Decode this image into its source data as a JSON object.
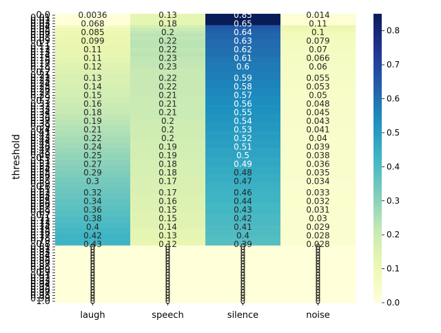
{
  "chart_data": {
    "type": "heatmap",
    "title": "",
    "xlabel": "",
    "ylabel": "threshold",
    "columns": [
      "laugh",
      "speech",
      "silence",
      "noise"
    ],
    "row_labels": [
      "0.0",
      "0.01",
      "0.02",
      "0.03",
      "0.04",
      "0.05",
      "0.06",
      "0.07",
      "0.08",
      "0.09",
      "0.1",
      "0.11",
      "0.12",
      "0.13",
      "0.14",
      "0.15",
      "0.16",
      "0.17",
      "0.18",
      "0.19",
      "0.2",
      "0.21",
      "0.22",
      "0.23",
      "0.24",
      "0.25",
      "0.26",
      "0.27",
      "0.28",
      "0.29",
      "0.3",
      "0.31",
      "0.32",
      "0.33",
      "0.34",
      "0.35",
      "0.36",
      "0.37",
      "0.38",
      "0.39",
      "0.4",
      "0.41",
      "0.42",
      "0.43",
      "0.44",
      "0.45",
      "0.46",
      "0.47",
      "0.48",
      "0.49",
      "0.5",
      "0.51",
      "0.52",
      "0.53",
      "0.54",
      "0.55",
      "0.56",
      "0.57",
      "0.58",
      "0.59",
      "0.6",
      "0.61",
      "0.62",
      "0.63",
      "0.64",
      "0.65",
      "0.66",
      "0.67",
      "0.68",
      "0.69",
      "0.7",
      "0.71",
      "0.72",
      "0.73",
      "0.74",
      "0.75",
      "0.76",
      "0.77",
      "0.78",
      "0.79",
      "0.8",
      "0.81",
      "0.82",
      "0.83",
      "0.84",
      "0.85",
      "0.86",
      "0.87",
      "0.88",
      "0.89",
      "0.9",
      "0.91",
      "0.92",
      "0.93",
      "0.94",
      "0.95",
      "0.96",
      "0.97",
      "0.98",
      "0.99",
      "1.0"
    ],
    "values": [
      [
        0.0036,
        0.13,
        0.85,
        0.014
      ],
      [
        0.0036,
        0.13,
        0.85,
        0.014
      ],
      [
        0.0036,
        0.13,
        0.85,
        0.014
      ],
      [
        0.0036,
        0.13,
        0.85,
        0.014
      ],
      [
        0.068,
        0.18,
        0.65,
        0.11
      ],
      [
        0.085,
        0.2,
        0.64,
        0.1
      ],
      [
        0.099,
        0.22,
        0.63,
        0.079
      ],
      [
        0.1,
        0.23,
        0.62,
        0.075
      ],
      [
        0.11,
        0.22,
        0.62,
        0.071
      ],
      [
        0.11,
        0.23,
        0.61,
        0.068
      ],
      [
        0.11,
        0.23,
        0.61,
        0.066
      ],
      [
        0.12,
        0.23,
        0.61,
        0.064
      ],
      [
        0.12,
        0.22,
        0.6,
        0.062
      ],
      [
        0.12,
        0.23,
        0.6,
        0.06
      ],
      [
        0.12,
        0.23,
        0.6,
        0.058
      ],
      [
        0.13,
        0.22,
        0.59,
        0.057
      ],
      [
        0.13,
        0.22,
        0.59,
        0.055
      ],
      [
        0.14,
        0.22,
        0.58,
        0.054
      ],
      [
        0.14,
        0.22,
        0.58,
        0.053
      ],
      [
        0.15,
        0.21,
        0.58,
        0.052
      ],
      [
        0.15,
        0.21,
        0.57,
        0.051
      ],
      [
        0.16,
        0.21,
        0.57,
        0.05
      ],
      [
        0.16,
        0.21,
        0.57,
        0.049
      ],
      [
        0.16,
        0.21,
        0.56,
        0.048
      ],
      [
        0.17,
        0.21,
        0.56,
        0.047
      ],
      [
        0.17,
        0.21,
        0.56,
        0.047
      ],
      [
        0.18,
        0.21,
        0.55,
        0.046
      ],
      [
        0.18,
        0.21,
        0.55,
        0.045
      ],
      [
        0.18,
        0.21,
        0.55,
        0.045
      ],
      [
        0.19,
        0.2,
        0.54,
        0.044
      ],
      [
        0.19,
        0.2,
        0.54,
        0.043
      ],
      [
        0.2,
        0.2,
        0.54,
        0.043
      ],
      [
        0.2,
        0.2,
        0.53,
        0.042
      ],
      [
        0.21,
        0.2,
        0.53,
        0.042
      ],
      [
        0.21,
        0.2,
        0.53,
        0.041
      ],
      [
        0.22,
        0.2,
        0.52,
        0.041
      ],
      [
        0.22,
        0.2,
        0.52,
        0.04
      ],
      [
        0.23,
        0.19,
        0.52,
        0.04
      ],
      [
        0.23,
        0.19,
        0.51,
        0.039
      ],
      [
        0.24,
        0.19,
        0.51,
        0.039
      ],
      [
        0.24,
        0.19,
        0.51,
        0.038
      ],
      [
        0.25,
        0.19,
        0.5,
        0.038
      ],
      [
        0.25,
        0.19,
        0.5,
        0.038
      ],
      [
        0.26,
        0.19,
        0.5,
        0.037
      ],
      [
        0.26,
        0.18,
        0.49,
        0.037
      ],
      [
        0.27,
        0.18,
        0.49,
        0.036
      ],
      [
        0.27,
        0.18,
        0.49,
        0.036
      ],
      [
        0.28,
        0.18,
        0.48,
        0.036
      ],
      [
        0.28,
        0.18,
        0.48,
        0.035
      ],
      [
        0.29,
        0.18,
        0.48,
        0.035
      ],
      [
        0.29,
        0.18,
        0.47,
        0.035
      ],
      [
        0.3,
        0.17,
        0.47,
        0.034
      ],
      [
        0.3,
        0.17,
        0.47,
        0.034
      ],
      [
        0.31,
        0.17,
        0.46,
        0.034
      ],
      [
        0.31,
        0.17,
        0.46,
        0.033
      ],
      [
        0.32,
        0.17,
        0.46,
        0.033
      ],
      [
        0.32,
        0.17,
        0.45,
        0.033
      ],
      [
        0.33,
        0.16,
        0.45,
        0.033
      ],
      [
        0.33,
        0.16,
        0.45,
        0.032
      ],
      [
        0.34,
        0.16,
        0.44,
        0.032
      ],
      [
        0.34,
        0.16,
        0.44,
        0.032
      ],
      [
        0.35,
        0.16,
        0.44,
        0.032
      ],
      [
        0.35,
        0.16,
        0.43,
        0.031
      ],
      [
        0.36,
        0.15,
        0.43,
        0.031
      ],
      [
        0.36,
        0.15,
        0.43,
        0.031
      ],
      [
        0.37,
        0.15,
        0.43,
        0.031
      ],
      [
        0.37,
        0.15,
        0.42,
        0.03
      ],
      [
        0.38,
        0.15,
        0.42,
        0.03
      ],
      [
        0.38,
        0.15,
        0.42,
        0.03
      ],
      [
        0.39,
        0.14,
        0.42,
        0.03
      ],
      [
        0.39,
        0.14,
        0.41,
        0.03
      ],
      [
        0.4,
        0.14,
        0.41,
        0.029
      ],
      [
        0.4,
        0.14,
        0.41,
        0.029
      ],
      [
        0.41,
        0.14,
        0.41,
        0.029
      ],
      [
        0.41,
        0.14,
        0.4,
        0.029
      ],
      [
        0.42,
        0.13,
        0.4,
        0.029
      ],
      [
        0.42,
        0.13,
        0.4,
        0.028
      ],
      [
        0.43,
        0.13,
        0.4,
        0.028
      ],
      [
        0.43,
        0.13,
        0.39,
        0.028
      ],
      [
        0.43,
        0.12,
        0.39,
        0.028
      ],
      [
        0.43,
        0.12,
        0.39,
        0.028
      ],
      [
        0,
        0,
        0,
        0
      ],
      [
        0,
        0,
        0,
        0
      ],
      [
        0,
        0,
        0,
        0
      ],
      [
        0,
        0,
        0,
        0
      ],
      [
        0,
        0,
        0,
        0
      ],
      [
        0,
        0,
        0,
        0
      ],
      [
        0,
        0,
        0,
        0
      ],
      [
        0,
        0,
        0,
        0
      ],
      [
        0,
        0,
        0,
        0
      ],
      [
        0,
        0,
        0,
        0
      ],
      [
        0,
        0,
        0,
        0
      ],
      [
        0,
        0,
        0,
        0
      ],
      [
        0,
        0,
        0,
        0
      ],
      [
        0,
        0,
        0,
        0
      ],
      [
        0,
        0,
        0,
        0
      ],
      [
        0,
        0,
        0,
        0
      ],
      [
        0,
        0,
        0,
        0
      ],
      [
        0,
        0,
        0,
        0
      ],
      [
        0,
        0,
        0,
        0
      ],
      [
        0,
        0,
        0,
        0
      ]
    ],
    "value_labels": [
      [
        "0.0036",
        "0.13",
        "0.85",
        "0.014"
      ],
      [
        "0.068",
        "0.18",
        "0.65",
        "0.11"
      ],
      [
        "0.085",
        "0.2",
        "0.64",
        "0.1"
      ],
      [
        "0.099",
        "0.22",
        "0.63",
        "0.079"
      ],
      [
        "0.11",
        "0.22",
        "0.62",
        "0.07"
      ],
      [
        "0.11",
        "0.23",
        "0.61",
        "0.066"
      ],
      [
        "0.12",
        "0.23",
        "0.6",
        "0.06"
      ],
      [
        "0.13",
        "0.22",
        "0.59",
        "0.055"
      ],
      [
        "0.14",
        "0.22",
        "0.58",
        "0.053"
      ],
      [
        "0.15",
        "0.21",
        "0.57",
        "0.05"
      ],
      [
        "0.16",
        "0.21",
        "0.56",
        "0.048"
      ],
      [
        "0.18",
        "0.21",
        "0.55",
        "0.045"
      ],
      [
        "0.19",
        "0.2",
        "0.54",
        "0.043"
      ],
      [
        "0.21",
        "0.2",
        "0.53",
        "0.041"
      ],
      [
        "0.22",
        "0.2",
        "0.52",
        "0.04"
      ],
      [
        "0.24",
        "0.19",
        "0.51",
        "0.039"
      ],
      [
        "0.25",
        "0.19",
        "0.5",
        "0.038"
      ],
      [
        "0.27",
        "0.18",
        "0.49",
        "0.036"
      ],
      [
        "0.29",
        "0.18",
        "0.48",
        "0.035"
      ],
      [
        "0.3",
        "0.17",
        "0.47",
        "0.034"
      ],
      [
        "0.32",
        "0.17",
        "0.46",
        "0.033"
      ],
      [
        "0.34",
        "0.16",
        "0.44",
        "0.032"
      ],
      [
        "0.36",
        "0.15",
        "0.43",
        "0.031"
      ],
      [
        "0.38",
        "0.15",
        "0.42",
        "0.03"
      ],
      [
        "0.4",
        "0.14",
        "0.41",
        "0.029"
      ],
      [
        "0.42",
        "0.13",
        "0.4",
        "0.028"
      ],
      [
        "0.43",
        "0.12",
        "0.39",
        "0.028"
      ]
    ],
    "zero_label": "0",
    "colorbar": {
      "colormap": "YlGnBu",
      "range": [
        0.0,
        0.85
      ],
      "ticks": [
        "0.0",
        "0.1",
        "0.2",
        "0.3",
        "0.4",
        "0.5",
        "0.6",
        "0.7",
        "0.8"
      ]
    },
    "grid": false,
    "legend": "colorbar-right"
  }
}
